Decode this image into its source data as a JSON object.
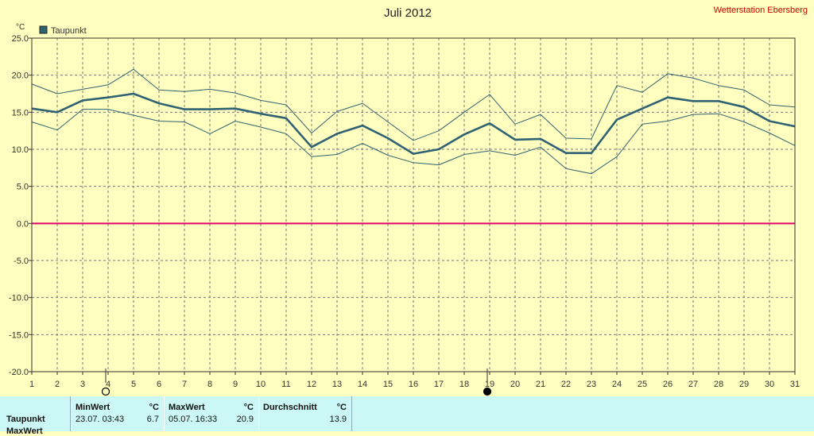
{
  "header": {
    "title": "Juli 2012",
    "station": "Wetterstation Ebersberg",
    "unit_label": "°C"
  },
  "legend": {
    "label": "Taupunkt",
    "color": "#2f6272"
  },
  "colors": {
    "plot_bg": "#ffffc0",
    "series": "#2f6272",
    "zero_line": "#e0006a",
    "axis": "#333333"
  },
  "chart_data": {
    "type": "line",
    "title": "Juli 2012",
    "ylabel": "°C",
    "ylim": [
      -20,
      25
    ],
    "yticks": [
      "25.0",
      "20.0",
      "15.0",
      "10.0",
      "5.0",
      "0.0",
      "-5.0",
      "-10.0",
      "-15.0",
      "-20.0"
    ],
    "x": [
      1,
      2,
      3,
      4,
      5,
      6,
      7,
      8,
      9,
      10,
      11,
      12,
      13,
      14,
      15,
      16,
      17,
      18,
      19,
      20,
      21,
      22,
      23,
      24,
      25,
      26,
      27,
      28,
      29,
      30,
      31
    ],
    "grid": true,
    "legend_position": "top-left",
    "moon_phases": [
      {
        "day": 4,
        "phase": "full"
      },
      {
        "day": 19,
        "phase": "new"
      }
    ],
    "series": [
      {
        "name": "Taupunkt",
        "role": "mean",
        "values": [
          15.5,
          15.0,
          16.6,
          17.0,
          17.5,
          16.2,
          15.4,
          15.4,
          15.5,
          14.8,
          14.2,
          10.3,
          12.1,
          13.2,
          11.5,
          9.4,
          10.0,
          12.0,
          13.5,
          11.3,
          11.4,
          9.5,
          9.5,
          14.0,
          15.5,
          17.0,
          16.5,
          16.5,
          15.7,
          13.8,
          13.1
        ]
      },
      {
        "role": "max",
        "values": [
          18.8,
          17.5,
          18.1,
          18.7,
          20.8,
          18.0,
          17.8,
          18.1,
          17.6,
          16.6,
          16.0,
          12.2,
          15.1,
          16.2,
          13.7,
          11.2,
          12.5,
          15.0,
          17.4,
          13.4,
          14.7,
          11.5,
          11.4,
          18.6,
          17.7,
          20.2,
          19.6,
          18.6,
          18.0,
          16.0,
          15.7
        ]
      },
      {
        "role": "min",
        "values": [
          13.7,
          12.6,
          15.4,
          15.4,
          14.6,
          13.8,
          13.7,
          12.1,
          13.8,
          13.0,
          12.1,
          9.0,
          9.3,
          10.8,
          9.2,
          8.2,
          7.9,
          9.3,
          9.8,
          9.2,
          10.3,
          7.4,
          6.7,
          9.0,
          13.4,
          13.8,
          14.7,
          14.8,
          13.7,
          12.2,
          10.5
        ]
      }
    ]
  },
  "stats": {
    "row_label": "Taupunkt",
    "row2_label": "MaxWert",
    "min": {
      "header": "MinWert",
      "unit": "°C",
      "datetime": "23.07.  03:43",
      "value": "6.7"
    },
    "max": {
      "header": "MaxWert",
      "unit": "°C",
      "datetime": "05.07.  16:33",
      "value": "20.9"
    },
    "avg": {
      "header": "Durchschnitt",
      "unit": "°C",
      "value": "13.9"
    }
  }
}
